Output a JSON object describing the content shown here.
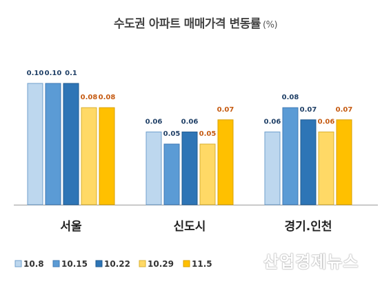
{
  "chart_data": {
    "type": "bar",
    "title": "수도권 아파트 매매가격 변동률",
    "unit": "(%)",
    "categories": [
      "서울",
      "신도시",
      "경기.인천"
    ],
    "series": [
      {
        "name": "10.8",
        "values": [
          0.1,
          0.06,
          0.06
        ],
        "labels": [
          "0.10",
          "0.06",
          "0.06"
        ],
        "color": "#bdd7ee",
        "stroke": "#6f9fcc",
        "label_color": "#1f3f66"
      },
      {
        "name": "10.15",
        "values": [
          0.1,
          0.05,
          0.08
        ],
        "labels": [
          "0.10",
          "0.05",
          "0.08"
        ],
        "color": "#5b9bd5",
        "stroke": "#3f7ab5",
        "label_color": "#1f3f66"
      },
      {
        "name": "10.22",
        "values": [
          0.1,
          0.06,
          0.07
        ],
        "labels": [
          "0.1",
          "0.06",
          "0.07"
        ],
        "color": "#2e75b6",
        "stroke": "#1f5a90",
        "label_color": "#1f3f66"
      },
      {
        "name": "10.29",
        "values": [
          0.08,
          0.05,
          0.06
        ],
        "labels": [
          "0.08",
          "0.05",
          "0.06"
        ],
        "color": "#ffd966",
        "stroke": "#d9b030",
        "label_color": "#c55a11"
      },
      {
        "name": "11.5",
        "values": [
          0.08,
          0.07,
          0.07
        ],
        "labels": [
          "0.08",
          "0.07",
          "0.07"
        ],
        "color": "#ffc000",
        "stroke": "#d9a000",
        "label_color": "#c55a11"
      }
    ],
    "ylim": [
      0,
      0.1
    ],
    "legend": "bottom-left"
  },
  "watermark": "산업경제뉴스"
}
